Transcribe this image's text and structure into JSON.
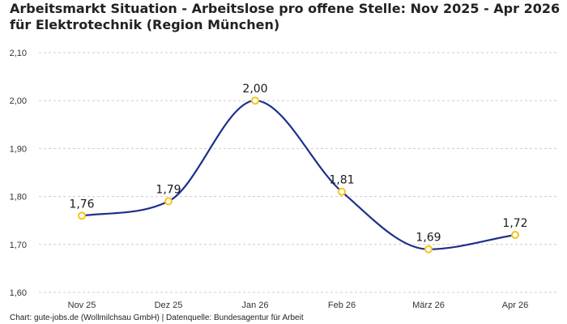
{
  "chart_data": {
    "type": "line",
    "title": "Arbeitsmarkt Situation - Arbeitslose pro offene Stelle: Nov 2025 - Apr 2026 für Elektrotechnik (Region München)",
    "categories": [
      "Nov 25",
      "Dez 25",
      "Jan 26",
      "Feb 26",
      "März 26",
      "Apr 26"
    ],
    "values": [
      1.76,
      1.79,
      2.0,
      1.81,
      1.69,
      1.72
    ],
    "value_labels": [
      "1,76",
      "1,79",
      "2,00",
      "1,81",
      "1,69",
      "1,72"
    ],
    "y_ticks": [
      1.6,
      1.7,
      1.8,
      1.9,
      2.0,
      2.1
    ],
    "y_tick_labels": [
      "1,60",
      "1,70",
      "1,80",
      "1,90",
      "2,00",
      "2,10"
    ],
    "ylim": [
      1.6,
      2.1
    ],
    "xlabel": "",
    "ylabel": "",
    "grid": true,
    "legend": "none",
    "line_color": "#1f2f8a",
    "marker_color": "#f5c518",
    "grid_color": "#cccccc"
  },
  "caption": "Chart: gute-jobs.de (Wollmilchsau GmbH) | Datenquelle: Bundesagentur für Arbeit"
}
